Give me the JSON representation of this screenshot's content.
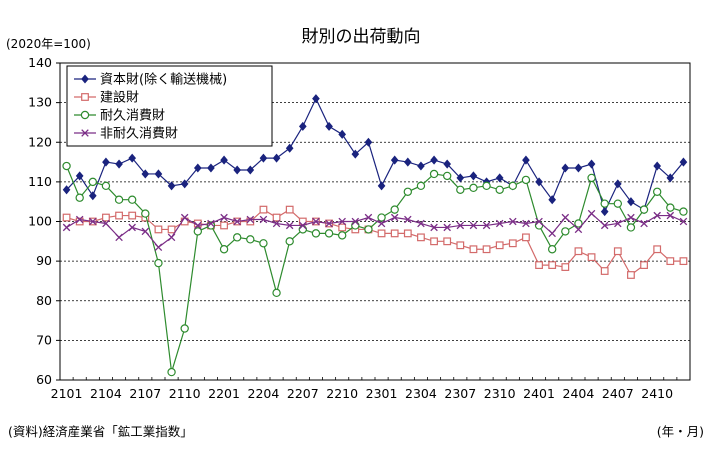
{
  "chart_data": {
    "type": "line",
    "title": "財別の出荷動向",
    "unit_label": "(2020年=100)",
    "xlabel": "(年・月)",
    "source": "(資料)経済産業省「鉱工業指数」",
    "ylim": [
      60,
      140
    ],
    "yticks": [
      "60",
      "70",
      "80",
      "90",
      "100",
      "110",
      "120",
      "130",
      "140"
    ],
    "x_tick_labels": [
      "2101",
      "2104",
      "2107",
      "2110",
      "2201",
      "2204",
      "2207",
      "2210",
      "2301",
      "2304",
      "2307",
      "2310",
      "2401",
      "2404",
      "2407",
      "2410"
    ],
    "x_tick_every": 3,
    "x": [
      "2101",
      "2102",
      "2103",
      "2104",
      "2105",
      "2106",
      "2107",
      "2108",
      "2109",
      "2110",
      "2111",
      "2112",
      "2201",
      "2202",
      "2203",
      "2204",
      "2205",
      "2206",
      "2207",
      "2208",
      "2209",
      "2210",
      "2211",
      "2212",
      "2301",
      "2302",
      "2303",
      "2304",
      "2305",
      "2306",
      "2307",
      "2308",
      "2309",
      "2310",
      "2311",
      "2312",
      "2401",
      "2402",
      "2403",
      "2404",
      "2405",
      "2406",
      "2407",
      "2408",
      "2409",
      "2410",
      "2411",
      "2412"
    ],
    "grid": "horizontal-dashed",
    "legend_position": "top-left",
    "series": [
      {
        "name": "資本財(除く輸送機械)",
        "color": "#1a237e",
        "marker": "diamond",
        "values": [
          108,
          111.5,
          106.5,
          115,
          114.5,
          116,
          112,
          112,
          109,
          109.5,
          113.5,
          113.5,
          115.5,
          113,
          113,
          116,
          116,
          118.5,
          124,
          131,
          124,
          122,
          117,
          120,
          109,
          115.5,
          115,
          114,
          115.5,
          114.5,
          111,
          111.5,
          110,
          111,
          109,
          115.5,
          110,
          105.5,
          113.5,
          113.5,
          114.5,
          102.5,
          109.5,
          105,
          103,
          114,
          111,
          115
        ]
      },
      {
        "name": "建設財",
        "color": "#d36a6a",
        "marker": "square",
        "values": [
          101,
          100,
          100,
          101,
          101.5,
          101.5,
          101,
          98,
          98,
          100,
          99.5,
          99,
          99,
          100,
          100,
          103,
          101,
          103,
          100,
          100,
          99.5,
          98.5,
          98,
          98,
          97,
          97,
          97,
          96,
          95,
          95,
          94,
          93,
          93,
          94,
          94.5,
          96,
          89,
          89,
          88.5,
          92.5,
          91,
          87.5,
          92.5,
          86.5,
          89,
          93,
          90,
          90
        ]
      },
      {
        "name": "耐久消費財",
        "color": "#2e8b2e",
        "marker": "circle",
        "values": [
          114,
          106,
          110,
          109,
          105.5,
          105.5,
          102,
          89.5,
          62,
          73,
          97.5,
          99,
          93,
          96,
          95.5,
          94.5,
          82,
          95,
          98,
          97,
          97,
          96.5,
          99,
          98,
          101,
          103,
          107.5,
          109,
          112,
          111.5,
          108,
          108.5,
          109,
          108,
          109,
          110.5,
          99,
          93,
          97.5,
          99.5,
          111,
          104.5,
          104.5,
          98.5,
          103,
          107.5,
          103.5,
          102.5
        ]
      },
      {
        "name": "非耐久消費財",
        "color": "#7a2d86",
        "marker": "x",
        "values": [
          98.5,
          100.5,
          100,
          99.5,
          96,
          98.5,
          97.5,
          93.5,
          96,
          101,
          99,
          99.5,
          101,
          100,
          100.5,
          100.5,
          99.5,
          99,
          99,
          100,
          99.5,
          100,
          100,
          101,
          99.5,
          101,
          100.5,
          99.5,
          98.5,
          98.5,
          99,
          99,
          99,
          99.5,
          100,
          99.5,
          100,
          97,
          101,
          98,
          102,
          99,
          99.5,
          101,
          99.5,
          101.5,
          101.5,
          100
        ]
      }
    ]
  }
}
